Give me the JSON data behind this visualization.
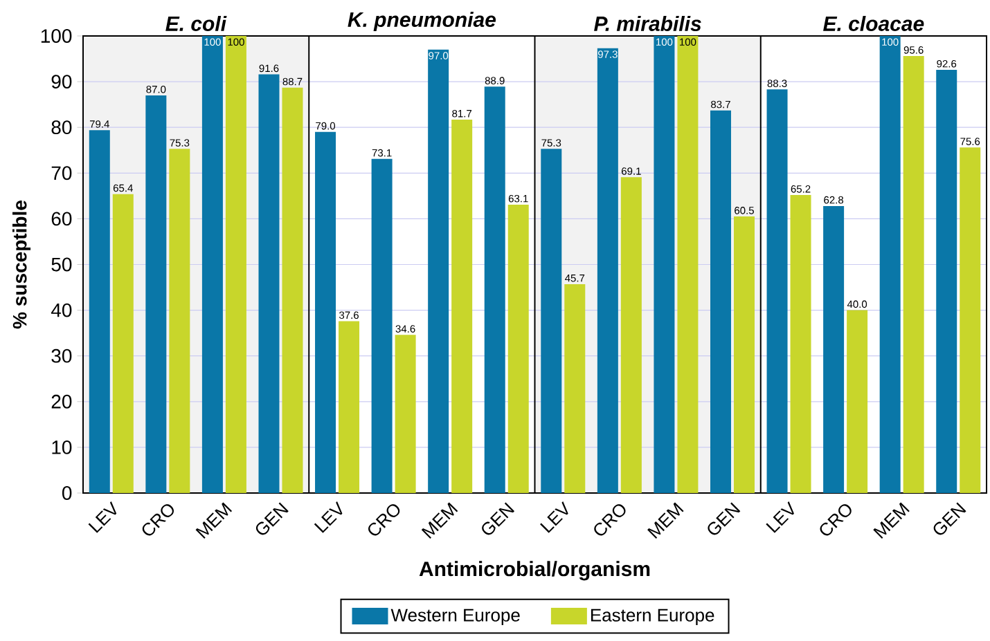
{
  "chart_data": {
    "type": "bar",
    "categories": [
      "LEV",
      "CRO",
      "MEM",
      "GEN",
      "LEV",
      "CRO",
      "MEM",
      "GEN",
      "LEV",
      "CRO",
      "MEM",
      "GEN",
      "LEV",
      "CRO",
      "MEM",
      "GEN"
    ],
    "series": [
      {
        "name": "Western Europe",
        "color": "#0a77a8",
        "values": [
          79.4,
          87.0,
          100,
          91.6,
          79.0,
          73.1,
          97.0,
          88.9,
          75.3,
          97.3,
          100,
          83.7,
          88.3,
          62.8,
          100,
          92.6
        ],
        "value_labels": [
          "79.4",
          "87.0",
          "100",
          "91.6",
          "79.0",
          "73.1",
          "97.0",
          "88.9",
          "75.3",
          "97.3",
          "100",
          "83.7",
          "88.3",
          "62.8",
          "100",
          "92.6"
        ]
      },
      {
        "name": "Eastern Europe",
        "color": "#c8d62b",
        "values": [
          65.4,
          75.3,
          100,
          88.7,
          37.6,
          34.6,
          81.7,
          63.1,
          45.7,
          69.1,
          100,
          60.5,
          65.2,
          40.0,
          95.6,
          75.6
        ],
        "value_labels": [
          "65.4",
          "75.3",
          "100",
          "88.7",
          "37.6",
          "34.6",
          "81.7",
          "63.1",
          "45.7",
          "69.1",
          "100",
          "60.5",
          "65.2",
          "40.0",
          "95.6",
          "75.6"
        ]
      }
    ],
    "annotations": [
      "*E. coli*",
      "*K. pneumoniae*",
      "*P. mirabilis*",
      "*E. cloacae*"
    ],
    "xlabel": "Antimicrobial/organism",
    "ylabel": "% susceptible",
    "ylim": [
      0,
      100
    ],
    "yticks": [
      0,
      10,
      20,
      30,
      40,
      50,
      60,
      70,
      80,
      90,
      100
    ],
    "grid": "y",
    "legend": "bottom"
  }
}
